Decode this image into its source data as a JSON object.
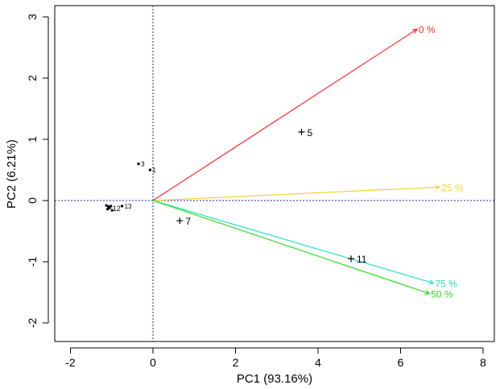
{
  "chart_data": {
    "type": "scatter",
    "subtype": "pca-biplot",
    "xlabel": "PC1 (93.16%)",
    "ylabel": "PC2 (6.21%)",
    "xlim": [
      -2.0,
      8.0
    ],
    "ylim": [
      -2.0,
      3.0
    ],
    "x_ticks": [
      -2,
      0,
      2,
      4,
      6,
      8
    ],
    "y_ticks": [
      -2,
      -1,
      0,
      1,
      2,
      3
    ],
    "grid": false,
    "reference_lines": {
      "x": 0,
      "y": 0,
      "style": "dotted",
      "color": "#2222aa"
    },
    "points": [
      {
        "label": "5",
        "x": 3.6,
        "y": 1.12,
        "size": "large"
      },
      {
        "label": "7",
        "x": 0.65,
        "y": -0.33,
        "size": "large"
      },
      {
        "label": "11",
        "x": 4.8,
        "y": -0.95,
        "size": "large"
      },
      {
        "label": "3",
        "x": -0.35,
        "y": 0.6,
        "size": "small"
      },
      {
        "label": "1",
        "x": -0.07,
        "y": 0.5,
        "size": "small"
      },
      {
        "label": "13",
        "x": -0.75,
        "y": -0.09,
        "size": "small"
      },
      {
        "label": "",
        "x": -1.13,
        "y": -0.08,
        "size": "small"
      },
      {
        "label": "",
        "x": -1.08,
        "y": -0.1,
        "size": "small"
      },
      {
        "label": "",
        "x": -1.05,
        "y": -0.12,
        "size": "small"
      },
      {
        "label": "",
        "x": -1.1,
        "y": -0.14,
        "size": "small"
      },
      {
        "label": "",
        "x": -1.02,
        "y": -0.09,
        "size": "small"
      },
      {
        "label": "",
        "x": -0.99,
        "y": -0.16,
        "size": "small"
      }
    ],
    "cluster_label": "12",
    "cluster_label_pos": {
      "x": -0.98,
      "y": -0.13
    },
    "vectors": [
      {
        "label": "0 %",
        "x": 6.4,
        "y": 2.8,
        "color": "#ff2a2a"
      },
      {
        "label": "25 %",
        "x": 6.95,
        "y": 0.22,
        "color": "#f5d23a"
      },
      {
        "label": "75 %",
        "x": 6.8,
        "y": -1.35,
        "color": "#22e6c0"
      },
      {
        "label": "50 %",
        "x": 6.7,
        "y": -1.52,
        "color": "#33dd22"
      }
    ]
  }
}
